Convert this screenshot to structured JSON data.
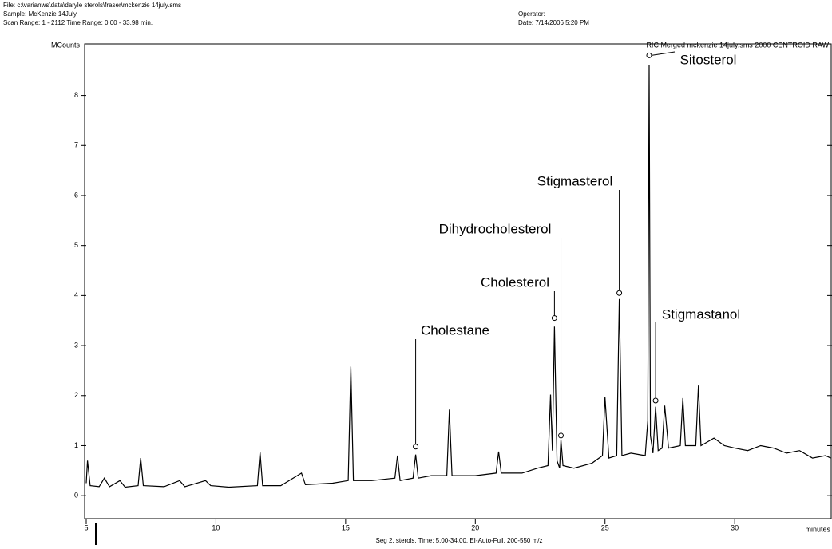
{
  "header": {
    "file": "File: c:\\varianws\\data\\daryle sterols\\fraser\\mckenzie 14july.sms",
    "sample": "Sample: McKenzie 14July",
    "scan_range": "Scan Range: 1 - 2112 Time Range: 0.00 - 33.98 min.",
    "operator": "Operator:",
    "date": "Date: 7/14/2006 5:20 PM"
  },
  "chart_data": {
    "type": "line",
    "title": "RIC Merged mckenzie 14july.sms 2000 CENTROID RAW",
    "y_label": "MCounts",
    "x_label": "minutes",
    "footer": "Seg 2, sterols, Time: 5.00-34.00, EI-Auto-Full, 200-550 m/z",
    "color": "#000000",
    "x": [
      5.0,
      5.05,
      5.15,
      5.5,
      5.7,
      5.9,
      6.3,
      6.5,
      7.0,
      7.1,
      7.2,
      8.0,
      8.6,
      8.8,
      9.6,
      9.8,
      10.5,
      11.6,
      11.7,
      11.8,
      12.5,
      13.3,
      13.45,
      14.5,
      15.1,
      15.2,
      15.3,
      16.0,
      16.9,
      17.0,
      17.1,
      17.6,
      17.7,
      17.8,
      18.3,
      18.9,
      19.0,
      19.1,
      20.0,
      20.8,
      20.9,
      21.0,
      21.8,
      22.4,
      22.8,
      22.9,
      22.97,
      23.05,
      23.15,
      23.25,
      23.3,
      23.38,
      23.8,
      24.5,
      24.9,
      25.0,
      25.15,
      25.45,
      25.55,
      25.65,
      26.0,
      26.55,
      26.65,
      26.7,
      26.75,
      26.85,
      26.95,
      27.05,
      27.2,
      27.3,
      27.45,
      27.9,
      28.0,
      28.1,
      28.5,
      28.6,
      28.7,
      29.2,
      29.6,
      30.0,
      30.5,
      31.0,
      31.5,
      32.0,
      32.5,
      33.0,
      33.5,
      33.7
    ],
    "values": [
      0.25,
      0.7,
      0.2,
      0.18,
      0.35,
      0.18,
      0.3,
      0.17,
      0.2,
      0.75,
      0.2,
      0.18,
      0.3,
      0.18,
      0.3,
      0.2,
      0.17,
      0.2,
      0.87,
      0.2,
      0.2,
      0.45,
      0.22,
      0.25,
      0.3,
      2.58,
      0.3,
      0.3,
      0.35,
      0.8,
      0.3,
      0.35,
      0.82,
      0.35,
      0.4,
      0.4,
      1.72,
      0.4,
      0.4,
      0.45,
      0.88,
      0.45,
      0.45,
      0.55,
      0.6,
      2.02,
      0.9,
      3.38,
      0.7,
      0.55,
      1.12,
      0.6,
      0.55,
      0.65,
      0.8,
      1.97,
      0.75,
      0.8,
      3.93,
      0.8,
      0.85,
      0.8,
      1.5,
      8.6,
      1.2,
      0.85,
      1.78,
      0.9,
      0.95,
      1.8,
      0.95,
      1.0,
      1.95,
      1.0,
      1.0,
      2.2,
      1.0,
      1.15,
      1.0,
      0.95,
      0.9,
      1.0,
      0.95,
      0.85,
      0.9,
      0.75,
      0.8,
      0.75
    ],
    "xlim": [
      5,
      33.75
    ],
    "xticks": [
      5,
      10,
      15,
      20,
      25,
      30
    ],
    "ylim": [
      -0.46,
      9.03
    ],
    "yticks": [
      0,
      1,
      2,
      3,
      4,
      5,
      6,
      7,
      8
    ],
    "annotations": [
      {
        "text": "Cholestane",
        "x": 17.7,
        "y": 0.98
      },
      {
        "text": "Cholesterol",
        "x": 23.05,
        "y": 3.55
      },
      {
        "text": "Dihydrocholesterol",
        "x": 23.3,
        "y": 1.2
      },
      {
        "text": "Stigmasterol",
        "x": 25.55,
        "y": 4.05
      },
      {
        "text": "Sitosterol",
        "x": 26.7,
        "y": 8.8
      },
      {
        "text": "Stigmastanol",
        "x": 26.95,
        "y": 1.9
      }
    ]
  }
}
